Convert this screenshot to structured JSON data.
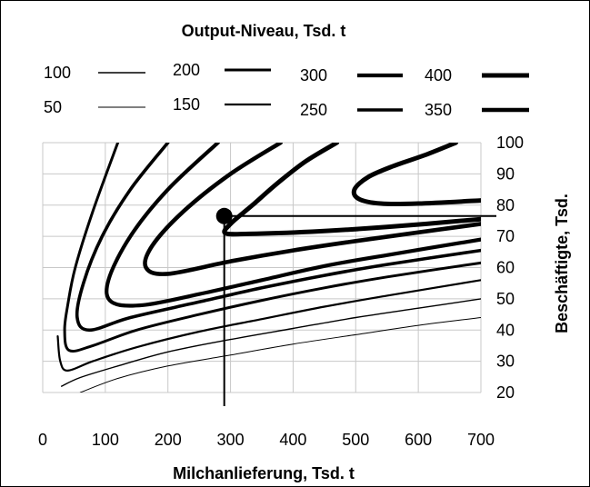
{
  "chart_data": {
    "type": "line",
    "title": "Output-Niveau, Tsd. t",
    "xlabel": "Milchanlieferung, Tsd. t",
    "ylabel": "Beschäftigte, Tsd.",
    "xlim": [
      0,
      700
    ],
    "ylim": [
      20,
      100
    ],
    "x_ticks": [
      "0",
      "100",
      "200",
      "300",
      "400",
      "500",
      "600",
      "700"
    ],
    "y_ticks": [
      "20",
      "30",
      "40",
      "50",
      "60",
      "70",
      "80",
      "90",
      "100"
    ],
    "grid": true,
    "legend": [
      {
        "label": "100",
        "width": 1.4
      },
      {
        "label": "200",
        "width": 3.0
      },
      {
        "label": "300",
        "width": 4.2
      },
      {
        "label": "400",
        "width": 5.0
      },
      {
        "label": "50",
        "width": 1.0
      },
      {
        "label": "150",
        "width": 2.2
      },
      {
        "label": "250",
        "width": 3.6
      },
      {
        "label": "350",
        "width": 4.6
      }
    ],
    "series": [
      {
        "name": "50",
        "points": [
          [
            60,
            20
          ],
          [
            120,
            24.5
          ],
          [
            200,
            28.5
          ],
          [
            300,
            32
          ],
          [
            400,
            35.5
          ],
          [
            500,
            38.5
          ],
          [
            600,
            41.5
          ],
          [
            700,
            44
          ]
        ]
      },
      {
        "name": "100",
        "points": [
          [
            30,
            22
          ],
          [
            60,
            24.8
          ],
          [
            120,
            28.5
          ],
          [
            200,
            33
          ],
          [
            300,
            37
          ],
          [
            400,
            40.5
          ],
          [
            500,
            44
          ],
          [
            600,
            47
          ],
          [
            700,
            50
          ]
        ]
      },
      {
        "name": "150",
        "points": [
          [
            24,
            38
          ],
          [
            28,
            30
          ],
          [
            40,
            27
          ],
          [
            80,
            30
          ],
          [
            150,
            34.5
          ],
          [
            250,
            39.5
          ],
          [
            350,
            43.5
          ],
          [
            450,
            47.5
          ],
          [
            550,
            51
          ],
          [
            700,
            56
          ]
        ]
      },
      {
        "name": "200",
        "points": [
          [
            120,
            100
          ],
          [
            80,
            78
          ],
          [
            52,
            60
          ],
          [
            40,
            48
          ],
          [
            35,
            40
          ],
          [
            42,
            33.5
          ],
          [
            80,
            35
          ],
          [
            150,
            40
          ],
          [
            250,
            45
          ],
          [
            350,
            49.5
          ],
          [
            450,
            53.5
          ],
          [
            550,
            57
          ],
          [
            700,
            61.5
          ]
        ]
      },
      {
        "name": "250",
        "points": [
          [
            200,
            100
          ],
          [
            140,
            85
          ],
          [
            95,
            70
          ],
          [
            65,
            55
          ],
          [
            55,
            44
          ],
          [
            75,
            40
          ],
          [
            140,
            44
          ],
          [
            250,
            49
          ],
          [
            350,
            53.5
          ],
          [
            450,
            57.5
          ],
          [
            550,
            61
          ],
          [
            700,
            65.5
          ]
        ]
      },
      {
        "name": "300",
        "points": [
          [
            280,
            100
          ],
          [
            200,
            85
          ],
          [
            140,
            70
          ],
          [
            105,
            56
          ],
          [
            110,
            49
          ],
          [
            160,
            48
          ],
          [
            250,
            51.5
          ],
          [
            350,
            56
          ],
          [
            450,
            60.5
          ],
          [
            550,
            64
          ],
          [
            700,
            69
          ]
        ]
      },
      {
        "name": "350",
        "points": [
          [
            380,
            100
          ],
          [
            300,
            90
          ],
          [
            225,
            78
          ],
          [
            175,
            67
          ],
          [
            165,
            60
          ],
          [
            200,
            58
          ],
          [
            300,
            62
          ],
          [
            400,
            65.5
          ],
          [
            500,
            68.5
          ],
          [
            700,
            74
          ]
        ]
      },
      {
        "name": "400",
        "points": [
          [
            470,
            100
          ],
          [
            420,
            94
          ],
          [
            375,
            87
          ],
          [
            335,
            80
          ],
          [
            300,
            74
          ],
          [
            292,
            71
          ],
          [
            330,
            70.8
          ],
          [
            430,
            71.5
          ],
          [
            550,
            73
          ],
          [
            700,
            75.5
          ]
        ]
      },
      {
        "name": "400",
        "points": [
          [
            700,
            81.5
          ],
          [
            600,
            80.5
          ],
          [
            540,
            80.5
          ],
          [
            505,
            82
          ],
          [
            498,
            85
          ],
          [
            520,
            89
          ],
          [
            560,
            92.5
          ],
          [
            610,
            96
          ],
          [
            660,
            100
          ]
        ]
      }
    ],
    "annotations": [
      {
        "type": "point",
        "x": 290,
        "y": 76.5
      },
      {
        "type": "h-line",
        "y": 76.5,
        "x_from": 290,
        "x_to": 700
      },
      {
        "type": "v-line",
        "x": 290,
        "y_from": 76.5,
        "y_to": 20
      }
    ]
  }
}
